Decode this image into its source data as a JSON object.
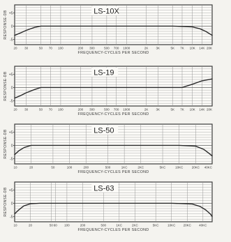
{
  "chart_data": [
    {
      "type": "line",
      "title": "LS-10X",
      "ylabel": "RESPONSE-DB",
      "xlabel": "FREQUENCY-CYCLES PER SECOND",
      "yticks": [
        "+5",
        "0",
        "-5"
      ],
      "xticks": [
        "20",
        "30",
        "50",
        "70",
        "100",
        "200",
        "300",
        "500",
        "700",
        "1000",
        "2K",
        "3K",
        "5K",
        "7K",
        "10K",
        "14K",
        "20K"
      ],
      "xscale": "log",
      "xlim": [
        20,
        20000
      ],
      "ylim": [
        -7,
        8
      ],
      "grid": true,
      "series": [
        {
          "x": [
            20,
            25,
            30,
            40,
            50,
            70,
            100,
            1000,
            5000,
            10000,
            13000,
            16000,
            20000
          ],
          "y": [
            -3.5,
            -2.5,
            -1.6,
            -0.5,
            0,
            0,
            0,
            0,
            0,
            -0.3,
            -1,
            -2,
            -3.5
          ]
        }
      ]
    },
    {
      "type": "line",
      "title": "LS-19",
      "ylabel": "RESPONSE-DB",
      "xlabel": "FREQUENCY-CYCLES PER SECOND",
      "yticks": [
        "+5",
        "0",
        "-5"
      ],
      "xticks": [
        "20",
        "30",
        "50",
        "70",
        "100",
        "200",
        "300",
        "500",
        "700",
        "1000",
        "2K",
        "3K",
        "5K",
        "7K",
        "10K",
        "14K",
        "20K"
      ],
      "xscale": "log",
      "xlim": [
        20,
        20000
      ],
      "ylim": [
        -7,
        8
      ],
      "grid": true,
      "series": [
        {
          "x": [
            20,
            25,
            30,
            40,
            50,
            70,
            100,
            1000,
            7000,
            10000,
            14000,
            20000
          ],
          "y": [
            -4,
            -3,
            -2,
            -0.8,
            0,
            0,
            0,
            0,
            0,
            1.2,
            2.5,
            3.2
          ]
        }
      ]
    },
    {
      "type": "line",
      "title": "LS-50",
      "ylabel": "RESPONSE-DB",
      "xlabel": "FREQUENCY-CYCLES PER SECOND",
      "yticks": [
        "+5",
        "0",
        "-5"
      ],
      "xticks": [
        "10",
        "20",
        "50",
        "100",
        "200",
        "500",
        "1KC",
        "2KC",
        "5KC",
        "10KC",
        "20KC",
        "40KC"
      ],
      "xscale": "log",
      "xlim": [
        10,
        40000
      ],
      "ylim": [
        -7,
        8
      ],
      "grid": true,
      "series": [
        {
          "x": [
            10,
            12,
            15,
            20,
            30,
            1000,
            10000,
            20000,
            28000,
            35000,
            40000
          ],
          "y": [
            -3.5,
            -2,
            -0.8,
            0,
            0,
            0,
            0,
            -0.3,
            -1.5,
            -3,
            -4
          ]
        }
      ]
    },
    {
      "type": "line",
      "title": "LS-63",
      "ylabel": "RESPONSE-DB",
      "xlabel": "FREQUENCY-CYCLES PER SECOND",
      "yticks": [
        "+5",
        "0",
        "-5"
      ],
      "xticks": [
        "10",
        "20",
        "50",
        "100",
        "200",
        "500",
        "1KC",
        "2KC",
        "5KC",
        "10KC",
        "20KC",
        "40KC",
        "60"
      ],
      "xscale": "log",
      "xlim": [
        10,
        60000
      ],
      "ylim": [
        -7,
        8
      ],
      "grid": true,
      "series": [
        {
          "x": [
            10,
            12,
            15,
            20,
            30,
            1000,
            10000,
            25000,
            35000,
            45000,
            55000,
            60000
          ],
          "y": [
            -4,
            -2.5,
            -1,
            -0.2,
            0,
            0,
            0,
            -0.3,
            -1.2,
            -2.5,
            -4,
            -5
          ]
        }
      ]
    }
  ]
}
